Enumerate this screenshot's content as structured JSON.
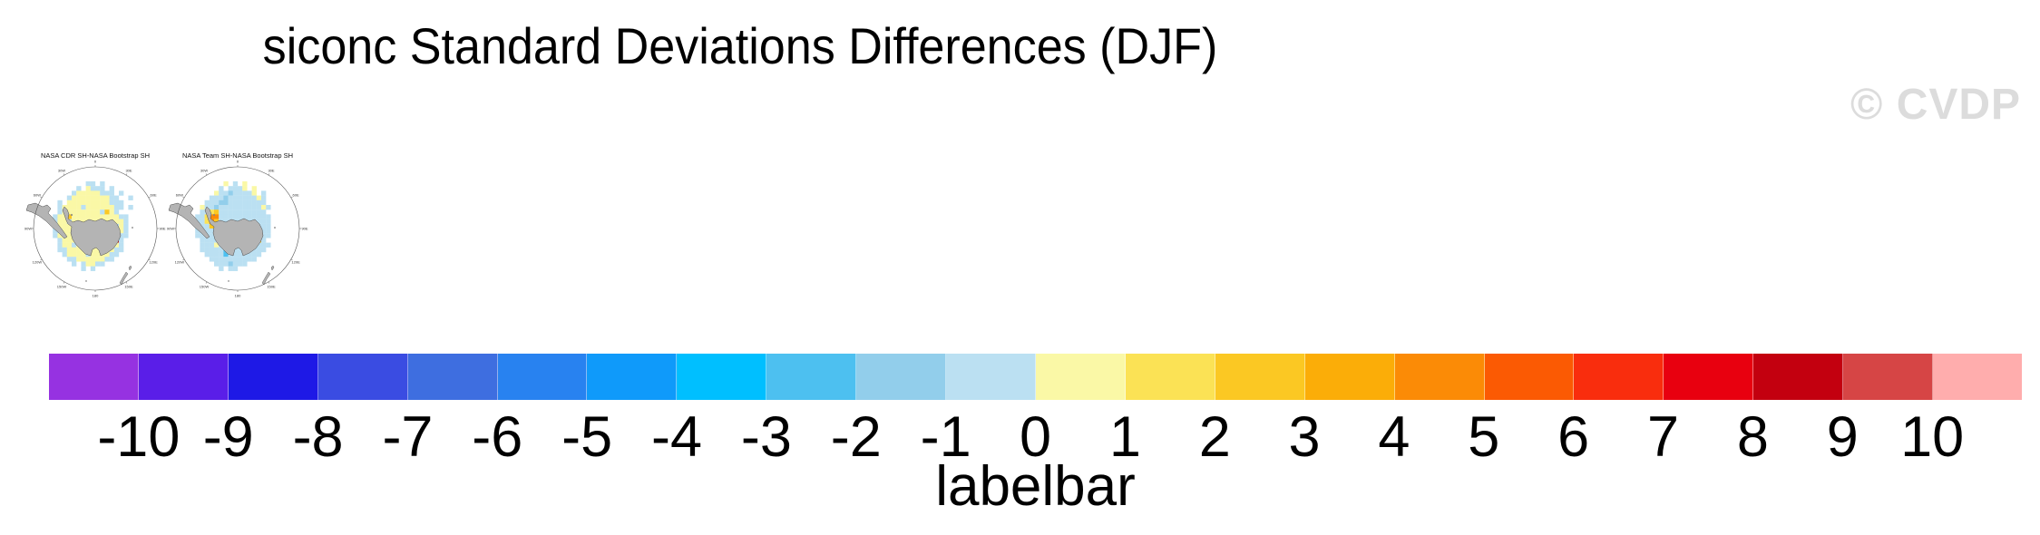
{
  "title": "siconc Standard Deviations Differences (DJF)",
  "watermark": "© CVDP",
  "maps": [
    {
      "title": "NASA CDR SH-NASA Bootstrap SH",
      "lon_labels": [
        "0",
        "30E",
        "60E",
        "90E",
        "120E",
        "150E",
        "180",
        "150W",
        "120W",
        "90W",
        "60W",
        "30W"
      ],
      "grid": [
        "........bb.b........",
        "......b.ybbb.b......",
        ".....byyyyybbb.b....",
        "....byyyyyyyybb..b..",
        "..b.yyyyyyyyybbb....",
        "..byyyybyyyyyybb.b..",
        "..byyyyyyyyboyb.....",
        ".byyoyyyyyyyyyybb...",
        ".byybyyyyyyyyyyyb...",
        ".byyyyyyyyyyyybyb...",
        ".bbyyyyyyyyyyyyyb...",
        ".byyyyyyyyyyyyybb...",
        "..byyyyyyyyyyyrb....",
        "..byybyyyyyyyyyb....",
        "..bbyyyyyyyyyybb....",
        "...byyyybyyyybb.....",
        "....bbyyyyyybb......",
        ".....b.byybb........",
        ".......b.b..........",
        "...................."
      ]
    },
    {
      "title": "NASA Team SH-NASA Bootstrap SH",
      "lon_labels": [
        "0",
        "30E",
        "60E",
        "90E",
        "120E",
        "150E",
        "180",
        "150W",
        "120W",
        "90W",
        "60W",
        "30W"
      ],
      "grid": [
        ".......y.b.y........",
        "......b.bbby.y......",
        ".....ybbBbbbby.b....",
        "....bbbBbbbbbbyb....",
        "...bbbBBbbbbbbbb....",
        "..ybbBbbbbbbbbbyb...",
        "..bbYobbbbbbbbbb....",
        ".bbYOObbbbbbbbbbb...",
        ".bbYOobbbbbbbbbbb...",
        ".bbbobbbbbbbbbbbb...",
        ".bbbbbbbbbbbbbbbb...",
        ".bbbbbbbbbbbbbobb...",
        "..bbbbbbbbbbbbob....",
        "..bbbybCbbbbbobbb...",
        "..bbbbbCCbbbbbbb....",
        "...bbbbCbbbbbbb.....",
        "....bbbbbbbbbb......",
        ".....bbbBbbb........",
        "......b.bb..........",
        "...................."
      ]
    }
  ],
  "cell_colors": {
    "y": "#FAF8A6",
    "Y": "#FBE255",
    "o": "#FBC823",
    "O": "#FB8B06",
    "r": "#E8000F",
    "b": "#BBE0F2",
    "B": "#92CEEB",
    "C": "#4DC0F0"
  },
  "land_color": "#b4b4b4",
  "outline_color": "#4a4a4a",
  "chart_data": {
    "type": "heatmap",
    "title": "siconc Standard Deviations Differences (DJF)",
    "panels": [
      "NASA CDR SH-NASA Bootstrap SH",
      "NASA Team SH-NASA Bootstrap SH"
    ],
    "colorbar": {
      "label": "labelbar",
      "levels": [
        -10,
        -9,
        -8,
        -7,
        -6,
        -5,
        -4,
        -3,
        -2,
        -1,
        0,
        1,
        2,
        3,
        4,
        5,
        6,
        7,
        8,
        9,
        10
      ],
      "colors": [
        "#9632E1",
        "#5A1EE8",
        "#1E19E6",
        "#3A4CE2",
        "#3E6EE0",
        "#2882F0",
        "#0F9AFA",
        "#00BFFF",
        "#4DC0F0",
        "#92CEEB",
        "#BBE0F2",
        "#FAF8A6",
        "#FBE255",
        "#FBC823",
        "#FBAD08",
        "#FB8B06",
        "#FB5A03",
        "#F92D0D",
        "#E8000F",
        "#C3000F",
        "#D64545",
        "#FFADAD"
      ]
    },
    "watermark": "© CVDP"
  }
}
